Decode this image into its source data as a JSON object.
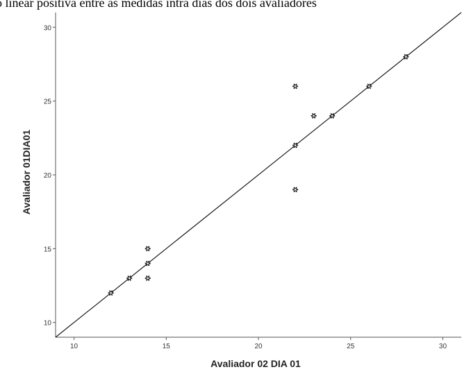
{
  "header": {
    "title": "o linear positiva entre as medidas intra dias dos dois avaliadores"
  },
  "chart_data": {
    "type": "scatter",
    "title": "",
    "xlabel": "Avaliador 02 DIA 01",
    "ylabel": "Avaliador 01DIA01",
    "xlim": [
      9,
      31
    ],
    "ylim": [
      9,
      31
    ],
    "xticks": [
      10,
      15,
      20,
      25,
      30
    ],
    "yticks": [
      10,
      15,
      20,
      25,
      30
    ],
    "grid": false,
    "legend": "none",
    "marker_color": "#1a1a1a",
    "line_color": "#1a1a1a",
    "reference_line": {
      "from": [
        9,
        9
      ],
      "to": [
        31,
        31
      ]
    },
    "points": [
      {
        "x": 12,
        "y": 12
      },
      {
        "x": 13,
        "y": 13
      },
      {
        "x": 14,
        "y": 13
      },
      {
        "x": 14,
        "y": 14
      },
      {
        "x": 14,
        "y": 15
      },
      {
        "x": 22,
        "y": 19
      },
      {
        "x": 22,
        "y": 22
      },
      {
        "x": 22,
        "y": 26
      },
      {
        "x": 23,
        "y": 24
      },
      {
        "x": 24,
        "y": 24
      },
      {
        "x": 26,
        "y": 26
      },
      {
        "x": 28,
        "y": 28
      }
    ]
  }
}
